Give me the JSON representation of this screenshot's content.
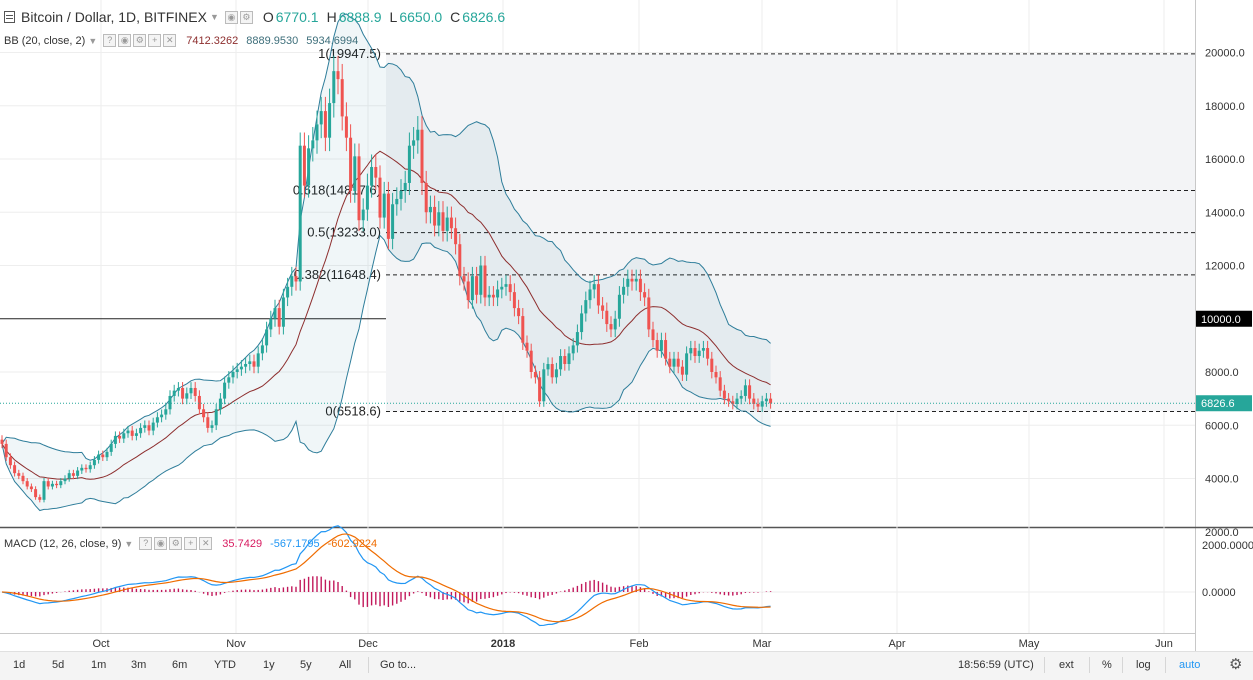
{
  "header": {
    "symbol_title": "Bitcoin / Dollar, 1D, BITFINEX",
    "ohlc": [
      {
        "label": "O",
        "value": "6770.1"
      },
      {
        "label": "H",
        "value": "6888.9"
      },
      {
        "label": "L",
        "value": "6650.0"
      },
      {
        "label": "C",
        "value": "6826.6"
      }
    ]
  },
  "bb_indicator": {
    "label": "BB (20, close, 2)",
    "values": [
      {
        "value": "7412.3262",
        "color": "#8d2e2e"
      },
      {
        "value": "8889.9530",
        "color": "#3d6e7a"
      },
      {
        "value": "5934.6994",
        "color": "#3d6e7a"
      }
    ]
  },
  "macd_indicator": {
    "label": "MACD (12, 26, close, 9)",
    "values": [
      {
        "value": "35.7429",
        "color": "#d81b60"
      },
      {
        "value": "-567.1795",
        "color": "#2196f3"
      },
      {
        "value": "-602.9224",
        "color": "#ef6c00"
      }
    ]
  },
  "price_axis": {
    "ticks": [
      "20000.0",
      "18000.0",
      "16000.0",
      "14000.0",
      "12000.0",
      "8000.0",
      "6000.0",
      "4000.0",
      "2000.0"
    ],
    "highlight_10000": "10000.0",
    "last_price": "6826.6"
  },
  "macd_axis": {
    "ticks": [
      "2000.0000",
      "0.0000"
    ]
  },
  "time_axis": {
    "labels": [
      "Oct",
      "Nov",
      "Dec",
      "2018",
      "Feb",
      "Mar",
      "Apr",
      "May",
      "Jun"
    ]
  },
  "fib_levels": [
    {
      "label": "1(19947.5)",
      "price": 19947.5
    },
    {
      "label": "0.618(14817.6)",
      "price": 14817.6
    },
    {
      "label": "0.5(13233.0)",
      "price": 13233.0
    },
    {
      "label": "0.382(11648.4)",
      "price": 11648.4
    },
    {
      "label": "0(6518.6)",
      "price": 6518.6
    }
  ],
  "colors": {
    "up": "#26a69a",
    "down": "#ef5350",
    "bb_band": "#2e7d9a",
    "bb_basis": "#8d2e2e",
    "macd_line": "#2196f3",
    "signal_line": "#ef6c00",
    "histogram": "#c2185b"
  },
  "toolbar": {
    "ranges": [
      "1d",
      "5d",
      "1m",
      "3m",
      "6m",
      "YTD",
      "1y",
      "5y",
      "All"
    ],
    "goto": "Go to...",
    "clock": "18:56:59 (UTC)",
    "options": [
      "ext",
      "%",
      "log",
      "auto"
    ]
  },
  "chart_data": {
    "type": "candlestick",
    "closes": [
      5300,
      4800,
      4500,
      4200,
      4100,
      3900,
      3700,
      3600,
      3300,
      3200,
      3900,
      3700,
      3800,
      3750,
      3900,
      4000,
      4200,
      4100,
      4300,
      4400,
      4350,
      4500,
      4700,
      4900,
      4800,
      5000,
      5300,
      5600,
      5500,
      5700,
      5800,
      5600,
      5700,
      5900,
      6000,
      5800,
      6100,
      6300,
      6400,
      6600,
      7100,
      7300,
      7400,
      7000,
      7200,
      7400,
      7100,
      6600,
      6300,
      5900,
      6000,
      6600,
      7000,
      7600,
      7800,
      8000,
      8100,
      8200,
      8300,
      8400,
      8200,
      8700,
      9000,
      9600,
      10000,
      10400,
      9700,
      10800,
      11200,
      11600,
      11400,
      16500,
      15000,
      16400,
      16700,
      17300,
      17800,
      16800,
      18100,
      19300,
      19000,
      17600,
      16800,
      14800,
      16100,
      13700,
      14100,
      15000,
      15700,
      15300,
      13800,
      14700,
      13000,
      14300,
      14500,
      14800,
      15100,
      16500,
      16700,
      17100,
      15100,
      14000,
      14200,
      13500,
      14000,
      13300,
      13800,
      13400,
      12800,
      11600,
      11400,
      10700,
      11600,
      10900,
      12000,
      10800,
      10900,
      10800,
      11100,
      11200,
      11300,
      11000,
      10400,
      10100,
      9100,
      8800,
      8000,
      7800,
      6900,
      8100,
      8300,
      7800,
      8100,
      8600,
      8300,
      8700,
      9000,
      9500,
      10200,
      10700,
      11100,
      11300,
      10500,
      10300,
      9800,
      9600,
      10000,
      10900,
      11200,
      11500,
      11400,
      11500,
      11000,
      10800,
      9600,
      9200,
      8800,
      9200,
      8500,
      8200,
      8500,
      8200,
      7900,
      8700,
      8900,
      8600,
      8800,
      8900,
      8500,
      8000,
      7800,
      7300,
      7000,
      6900,
      6800,
      7000,
      7100,
      7500,
      7000,
      6800,
      6700,
      6900,
      7000,
      6827
    ],
    "fib_retracement": [
      19947.5,
      14817.6,
      13233.0,
      11648.4,
      6518.6
    ],
    "y_range": [
      2000,
      21000
    ],
    "x_range": [
      "Sep 2017",
      "Jun 2018"
    ]
  }
}
